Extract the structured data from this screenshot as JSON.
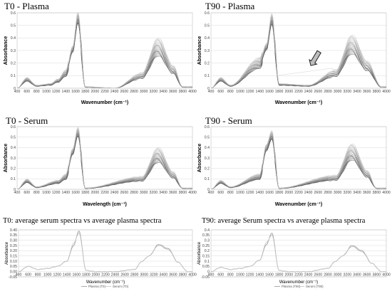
{
  "chart_data": [
    {
      "type": "line",
      "title": "T0 - Plasma",
      "xlabel": "Wavenumber (cm⁻¹)",
      "ylabel": "Absorbance",
      "xlim": [
        400,
        4000
      ],
      "ylim": [
        0,
        0.6
      ],
      "x_ticks": [
        400,
        600,
        800,
        1000,
        1200,
        1400,
        1600,
        1800,
        2000,
        2200,
        2400,
        2600,
        2800,
        3000,
        3200,
        3400,
        3600,
        3800,
        4000
      ],
      "y_ticks": [
        0,
        0.1,
        0.2,
        0.3,
        0.4,
        0.5,
        0.6
      ],
      "grid": true,
      "series_count": 20,
      "key_points": [
        {
          "x": 400,
          "y": 0.0
        },
        {
          "x": 600,
          "y": 0.07
        },
        {
          "x": 800,
          "y": 0.02
        },
        {
          "x": 1080,
          "y": 0.03
        },
        {
          "x": 1240,
          "y": 0.06
        },
        {
          "x": 1400,
          "y": 0.12
        },
        {
          "x": 1540,
          "y": 0.31
        },
        {
          "x": 1650,
          "y": 0.56
        },
        {
          "x": 1800,
          "y": 0.01
        },
        {
          "x": 2400,
          "y": 0.0
        },
        {
          "x": 2960,
          "y": 0.1
        },
        {
          "x": 3300,
          "y": 0.33
        },
        {
          "x": 3600,
          "y": 0.15
        },
        {
          "x": 3800,
          "y": 0.01
        }
      ]
    },
    {
      "type": "line",
      "title": "T90 - Plasma",
      "xlabel": "Wavenumber (cm⁻¹)",
      "ylabel": "Absorbance",
      "xlim": [
        400,
        4000
      ],
      "ylim": [
        0,
        0.6
      ],
      "x_ticks": [
        400,
        600,
        800,
        1000,
        1200,
        1400,
        1600,
        1800,
        2000,
        2200,
        2400,
        2600,
        2800,
        3000,
        3200,
        3400,
        3600,
        3800,
        4000
      ],
      "y_ticks": [
        0,
        0.1,
        0.2,
        0.3,
        0.4,
        0.5,
        0.6
      ],
      "grid": true,
      "series_count": 20,
      "annotation": "arrow pointing to a baseline-shifted spectrum near 2500 cm⁻¹",
      "key_points": [
        {
          "x": 400,
          "y": 0.0
        },
        {
          "x": 600,
          "y": 0.07
        },
        {
          "x": 800,
          "y": 0.02
        },
        {
          "x": 1400,
          "y": 0.2
        },
        {
          "x": 1540,
          "y": 0.33
        },
        {
          "x": 1650,
          "y": 0.55
        },
        {
          "x": 1800,
          "y": 0.03
        },
        {
          "x": 2400,
          "y": 0.02
        },
        {
          "x": 2960,
          "y": 0.12
        },
        {
          "x": 3300,
          "y": 0.35
        },
        {
          "x": 3600,
          "y": 0.18
        },
        {
          "x": 3900,
          "y": 0.01
        }
      ]
    },
    {
      "type": "line",
      "title": "T0 - Serum",
      "xlabel": "Wavelength (cm⁻¹)",
      "ylabel": "Absorbance",
      "xlim": [
        400,
        4000
      ],
      "ylim": [
        0,
        0.6
      ],
      "x_ticks": [
        400,
        600,
        800,
        1000,
        1200,
        1400,
        1600,
        1800,
        2000,
        2200,
        2400,
        2600,
        2800,
        3000,
        3200,
        3400,
        3600,
        3800,
        4000
      ],
      "y_ticks": [
        0,
        0.1,
        0.2,
        0.3,
        0.4,
        0.5,
        0.6
      ],
      "grid": true,
      "series_count": 20,
      "key_points": [
        {
          "x": 400,
          "y": 0.0
        },
        {
          "x": 600,
          "y": 0.08
        },
        {
          "x": 800,
          "y": 0.02
        },
        {
          "x": 1240,
          "y": 0.07
        },
        {
          "x": 1400,
          "y": 0.12
        },
        {
          "x": 1540,
          "y": 0.36
        },
        {
          "x": 1650,
          "y": 0.55
        },
        {
          "x": 1800,
          "y": 0.01
        },
        {
          "x": 2960,
          "y": 0.1
        },
        {
          "x": 3300,
          "y": 0.33
        },
        {
          "x": 3600,
          "y": 0.14
        },
        {
          "x": 3800,
          "y": 0.01
        }
      ]
    },
    {
      "type": "line",
      "title": "T90 - Serum",
      "xlabel": "Wavenumber (cm⁻¹)",
      "ylabel": "Absorbance",
      "xlim": [
        400,
        4000
      ],
      "ylim": [
        0,
        0.6
      ],
      "x_ticks": [
        400,
        600,
        800,
        1000,
        1200,
        1400,
        1600,
        1800,
        2000,
        2200,
        2400,
        2600,
        2800,
        3000,
        3200,
        3400,
        3600,
        3800,
        4000
      ],
      "y_ticks": [
        0,
        0.1,
        0.2,
        0.3,
        0.4,
        0.5,
        0.6
      ],
      "grid": true,
      "series_count": 20,
      "key_points": [
        {
          "x": 400,
          "y": 0.0
        },
        {
          "x": 600,
          "y": 0.07
        },
        {
          "x": 800,
          "y": 0.02
        },
        {
          "x": 1400,
          "y": 0.12
        },
        {
          "x": 1540,
          "y": 0.4
        },
        {
          "x": 1650,
          "y": 0.52
        },
        {
          "x": 1800,
          "y": 0.01
        },
        {
          "x": 2960,
          "y": 0.11
        },
        {
          "x": 3300,
          "y": 0.36
        },
        {
          "x": 3600,
          "y": 0.15
        },
        {
          "x": 3800,
          "y": 0.01
        }
      ]
    },
    {
      "type": "line",
      "title": "T0: average serum spectra vs average plasma spectra",
      "xlabel": "Wavenumber (cm⁻¹)",
      "ylabel": "Absorbance",
      "xlim": [
        400,
        4000
      ],
      "ylim": [
        -0.05,
        0.4
      ],
      "x_ticks": [
        400,
        600,
        800,
        1000,
        1200,
        1400,
        1600,
        1800,
        2000,
        2200,
        2400,
        2600,
        2800,
        3000,
        3200,
        3400,
        3600,
        3800,
        4000
      ],
      "y_tick_labels": [
        "-0.05",
        "0.00",
        "0.05",
        "0.10",
        "0.15",
        "0.20",
        "0.25",
        "0.30",
        "0.35",
        "0.40"
      ],
      "grid": true,
      "legend_position": "bottom",
      "series": [
        {
          "name": "Plasma (T0)",
          "x": [
            400,
            600,
            800,
            1000,
            1200,
            1400,
            1540,
            1650,
            1800,
            2000,
            2400,
            2800,
            2960,
            3100,
            3300,
            3500,
            3700,
            3900,
            4000
          ],
          "values": [
            0.0,
            0.05,
            0.02,
            0.03,
            0.05,
            0.1,
            0.25,
            0.39,
            0.01,
            0.0,
            0.0,
            0.02,
            0.1,
            0.15,
            0.26,
            0.22,
            0.09,
            0.0,
            0.0
          ]
        },
        {
          "name": "Serum (T0)",
          "x": [
            400,
            600,
            800,
            1000,
            1200,
            1400,
            1540,
            1650,
            1800,
            2000,
            2400,
            2800,
            2960,
            3100,
            3300,
            3500,
            3700,
            3900,
            4000
          ],
          "values": [
            0.0,
            0.05,
            0.02,
            0.03,
            0.05,
            0.1,
            0.27,
            0.37,
            0.01,
            0.0,
            0.0,
            0.02,
            0.1,
            0.15,
            0.25,
            0.21,
            0.09,
            0.0,
            0.0
          ]
        }
      ]
    },
    {
      "type": "line",
      "title": "T90: average Serum spectra vs average plasma spectra",
      "xlabel": "Wavenumber (cm⁻¹)",
      "ylabel": "Absorbance",
      "xlim": [
        400,
        4000
      ],
      "ylim": [
        -0.05,
        0.4
      ],
      "x_ticks": [
        400,
        600,
        800,
        1000,
        1200,
        1400,
        1600,
        1800,
        2000,
        2200,
        2400,
        2600,
        2800,
        3000,
        3200,
        3400,
        3600,
        3800,
        4000
      ],
      "y_tick_labels": [
        "-0.05",
        "0",
        "0.05",
        "0.1",
        "0.15",
        "0.2",
        "0.25",
        "0.3",
        "0.35",
        "0.4"
      ],
      "grid": true,
      "legend_position": "bottom",
      "series": [
        {
          "name": "Plasma (T90)",
          "x": [
            400,
            600,
            800,
            1000,
            1200,
            1400,
            1540,
            1650,
            1800,
            2000,
            2400,
            2800,
            2960,
            3100,
            3300,
            3500,
            3700,
            3900,
            4000
          ],
          "values": [
            0.0,
            0.04,
            0.02,
            0.03,
            0.05,
            0.11,
            0.26,
            0.37,
            0.01,
            0.0,
            0.0,
            0.03,
            0.1,
            0.15,
            0.25,
            0.2,
            0.08,
            0.0,
            0.0
          ]
        },
        {
          "name": "Serum (T90)",
          "x": [
            400,
            600,
            800,
            1000,
            1200,
            1400,
            1540,
            1650,
            1800,
            2000,
            2400,
            2800,
            2960,
            3100,
            3300,
            3500,
            3700,
            3900,
            4000
          ],
          "values": [
            0.0,
            0.04,
            0.02,
            0.03,
            0.05,
            0.11,
            0.28,
            0.35,
            0.01,
            0.0,
            0.0,
            0.03,
            0.1,
            0.15,
            0.24,
            0.19,
            0.08,
            0.0,
            0.0
          ]
        }
      ]
    }
  ]
}
